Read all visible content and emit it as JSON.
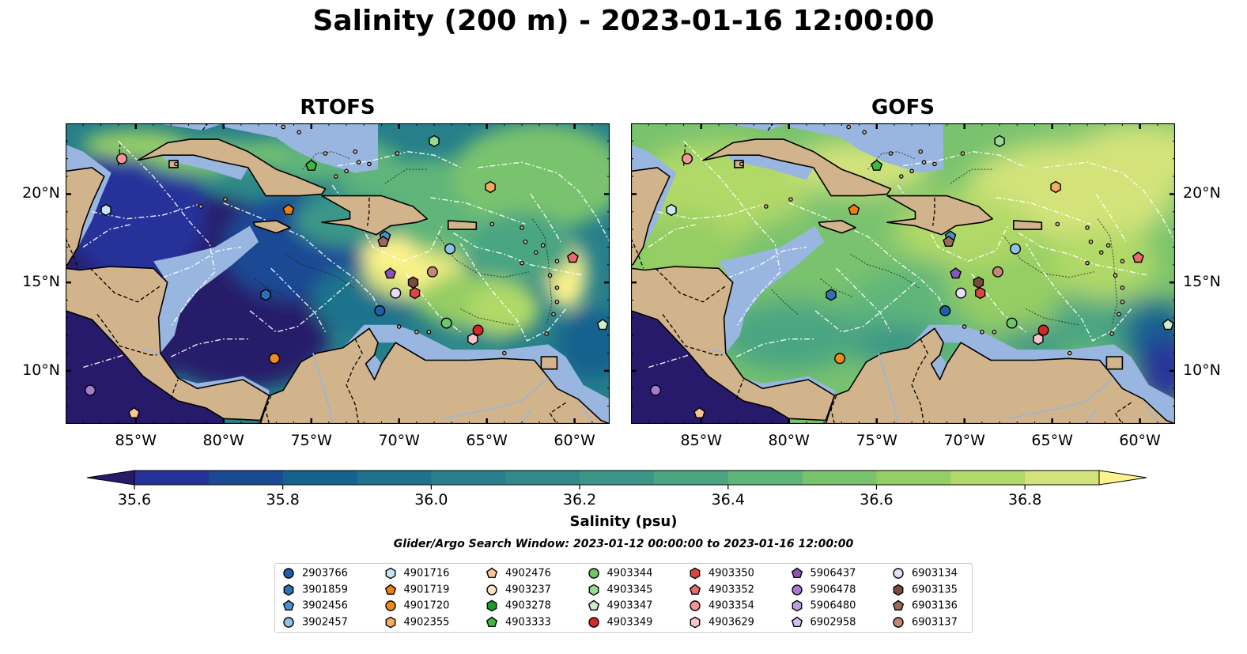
{
  "title": "Salinity (200 m) - 2023-01-16 12:00:00",
  "panels": [
    {
      "name": "RTOFS",
      "id": "rtofs"
    },
    {
      "name": "GOFS",
      "id": "gofs"
    }
  ],
  "map_extent": {
    "lon": [
      -89,
      -58
    ],
    "lat": [
      7,
      24
    ]
  },
  "lon_ticks": [
    {
      "value": -85,
      "label": "85°W"
    },
    {
      "value": -80,
      "label": "80°W"
    },
    {
      "value": -75,
      "label": "75°W"
    },
    {
      "value": -70,
      "label": "70°W"
    },
    {
      "value": -65,
      "label": "65°W"
    },
    {
      "value": -60,
      "label": "60°W"
    }
  ],
  "lat_ticks": [
    {
      "value": 10,
      "label": "10°N"
    },
    {
      "value": 15,
      "label": "15°N"
    },
    {
      "value": 20,
      "label": "20°N"
    }
  ],
  "colorbar": {
    "label": "Salinity (psu)",
    "min": 35.5,
    "max": 37.0,
    "step": 0.1,
    "ticks": [
      {
        "value": 35.6,
        "label": "35.6"
      },
      {
        "value": 35.8,
        "label": "35.8"
      },
      {
        "value": 36.0,
        "label": "36.0"
      },
      {
        "value": 36.2,
        "label": "36.2"
      },
      {
        "value": 36.4,
        "label": "36.4"
      },
      {
        "value": 36.6,
        "label": "36.6"
      },
      {
        "value": 36.8,
        "label": "36.8"
      }
    ],
    "colors": [
      "#271a6b",
      "#27319a",
      "#1b4a94",
      "#15628f",
      "#1d738c",
      "#267f8a",
      "#2f8a89",
      "#3a9787",
      "#4aa582",
      "#5eb57a",
      "#79c26e",
      "#95ce63",
      "#b1d968",
      "#d3e37a",
      "#fdf28c"
    ]
  },
  "search_window": "Glider/Argo Search Window: 2023-01-12 00:00:00 to 2023-01-16 12:00:00",
  "colors": {
    "land": "#d2b48c",
    "shelf": "#98b6e0",
    "grid_line": "#ffffff"
  },
  "legend": [
    {
      "id": "2903766",
      "color": "#1f5fa8",
      "marker": "circle"
    },
    {
      "id": "3901859",
      "color": "#2e6fb6",
      "marker": "hexagon"
    },
    {
      "id": "3902456",
      "color": "#4b8fd1",
      "marker": "pentagon"
    },
    {
      "id": "3902457",
      "color": "#8fc1ea",
      "marker": "circle"
    },
    {
      "id": "4901716",
      "color": "#c9e4f6",
      "marker": "hexagon"
    },
    {
      "id": "4901719",
      "color": "#ef7f10",
      "marker": "pentagon"
    },
    {
      "id": "4901720",
      "color": "#f28a1e",
      "marker": "circle"
    },
    {
      "id": "4902355",
      "color": "#f6ad5f",
      "marker": "hexagon"
    },
    {
      "id": "4902476",
      "color": "#f9c693",
      "marker": "pentagon"
    },
    {
      "id": "4903237",
      "color": "#fde1c4",
      "marker": "circle"
    },
    {
      "id": "4903278",
      "color": "#1d9a2c",
      "marker": "hexagon"
    },
    {
      "id": "4903333",
      "color": "#3fb63f",
      "marker": "pentagon"
    },
    {
      "id": "4903344",
      "color": "#6cc96a",
      "marker": "circle"
    },
    {
      "id": "4903345",
      "color": "#9ad994",
      "marker": "hexagon"
    },
    {
      "id": "4903347",
      "color": "#cdefc8",
      "marker": "pentagon"
    },
    {
      "id": "4903349",
      "color": "#d62728",
      "marker": "circle"
    },
    {
      "id": "4903350",
      "color": "#dc4545",
      "marker": "hexagon"
    },
    {
      "id": "4903352",
      "color": "#ea6a6e",
      "marker": "pentagon"
    },
    {
      "id": "4903354",
      "color": "#f29595",
      "marker": "circle"
    },
    {
      "id": "4903629",
      "color": "#f9c4c4",
      "marker": "hexagon"
    },
    {
      "id": "5906437",
      "color": "#8a55b8",
      "marker": "pentagon"
    },
    {
      "id": "5906478",
      "color": "#a57ad0",
      "marker": "circle"
    },
    {
      "id": "5906480",
      "color": "#bc9de0",
      "marker": "hexagon"
    },
    {
      "id": "6902958",
      "color": "#d3bff0",
      "marker": "pentagon"
    },
    {
      "id": "6903134",
      "color": "#e9dbfb",
      "marker": "circle"
    },
    {
      "id": "6903135",
      "color": "#7a4a3e",
      "marker": "hexagon"
    },
    {
      "id": "6903136",
      "color": "#9a6a5b",
      "marker": "pentagon"
    },
    {
      "id": "6903137",
      "color": "#c4877a",
      "marker": "circle"
    }
  ],
  "floats": [
    {
      "id": "4903354",
      "lon": -85.8,
      "lat": 22.0
    },
    {
      "id": "4901716",
      "lon": -86.7,
      "lat": 19.1
    },
    {
      "id": "4903333",
      "lon": -75.0,
      "lat": 21.6
    },
    {
      "id": "4903345",
      "lon": -68.0,
      "lat": 23.0
    },
    {
      "id": "4901719",
      "lon": -76.3,
      "lat": 19.1
    },
    {
      "id": "4902355",
      "lon": -64.8,
      "lat": 20.4
    },
    {
      "id": "3902456",
      "lon": -70.8,
      "lat": 17.6
    },
    {
      "id": "6903136",
      "lon": -70.9,
      "lat": 17.3
    },
    {
      "id": "3902457",
      "lon": -67.1,
      "lat": 16.9
    },
    {
      "id": "4903352",
      "lon": -60.1,
      "lat": 16.4
    },
    {
      "id": "5906437",
      "lon": -70.5,
      "lat": 15.5
    },
    {
      "id": "6903137",
      "lon": -68.1,
      "lat": 15.6
    },
    {
      "id": "6903135",
      "lon": -69.2,
      "lat": 15.0
    },
    {
      "id": "4903350",
      "lon": -69.1,
      "lat": 14.4
    },
    {
      "id": "6903134",
      "lon": -70.2,
      "lat": 14.4
    },
    {
      "id": "3901859",
      "lon": -77.6,
      "lat": 14.3
    },
    {
      "id": "2903766",
      "lon": -71.1,
      "lat": 13.4
    },
    {
      "id": "4903344",
      "lon": -67.3,
      "lat": 12.7
    },
    {
      "id": "4903349",
      "lon": -65.5,
      "lat": 12.3
    },
    {
      "id": "4903629",
      "lon": -65.8,
      "lat": 11.8
    },
    {
      "id": "4903347",
      "lon": -58.4,
      "lat": 12.6
    },
    {
      "id": "4901720",
      "lon": -77.1,
      "lat": 10.7
    },
    {
      "id": "5906478",
      "lon": -87.6,
      "lat": 8.9
    },
    {
      "id": "4902476",
      "lon": -85.1,
      "lat": 7.6
    }
  ]
}
